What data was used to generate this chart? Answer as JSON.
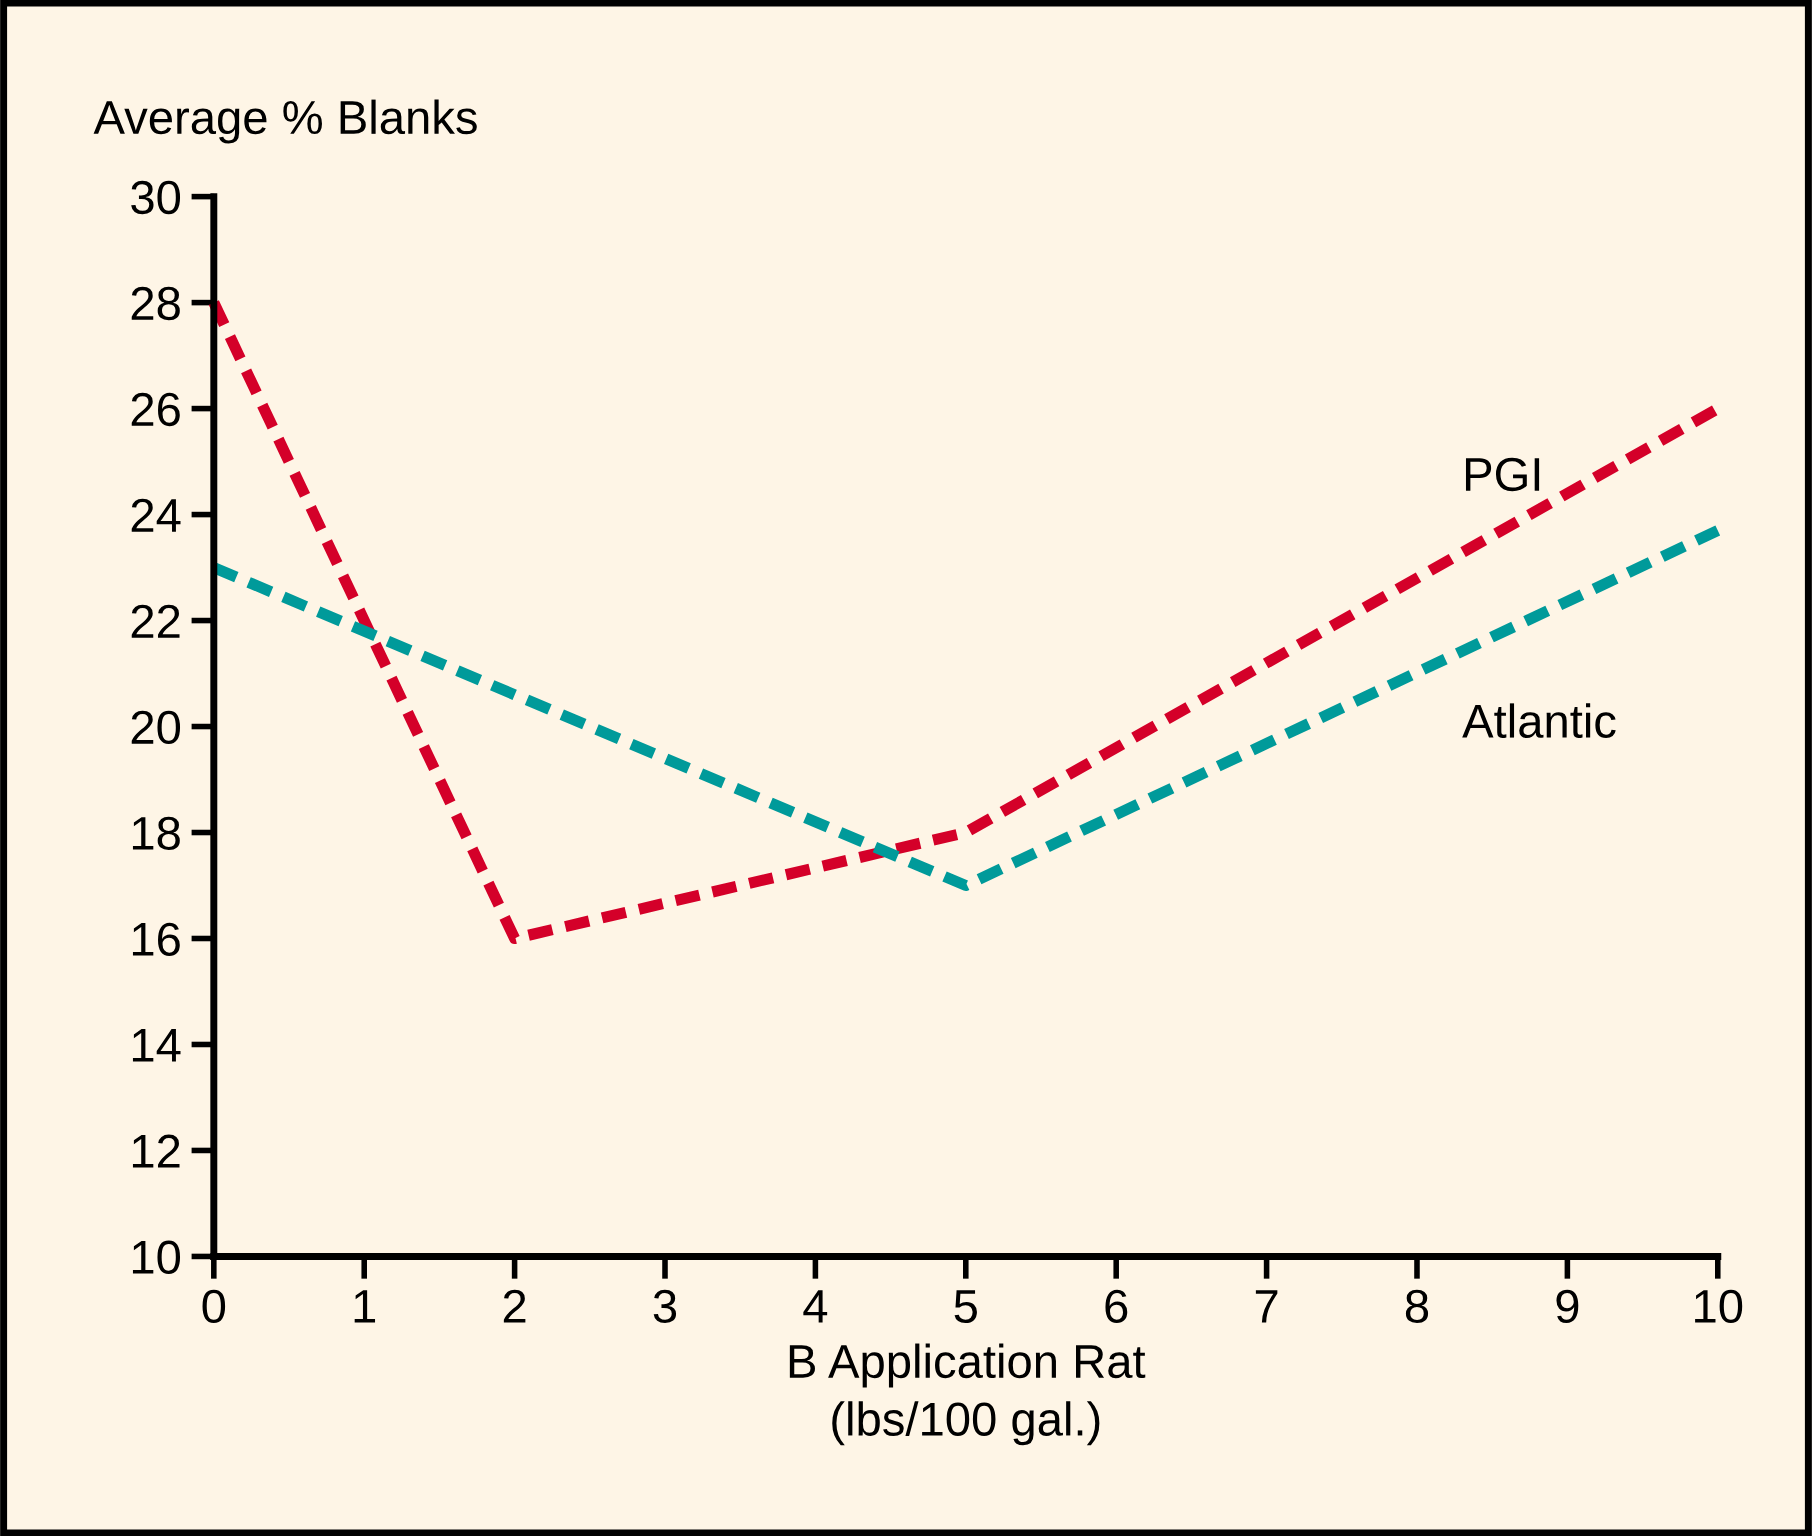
{
  "chart_data": {
    "type": "line",
    "ylabel": "Average % Blanks",
    "xlabel": "B Application Rat\n(lbs/100 gal.)",
    "series": [
      {
        "name": "PGI",
        "color": "#d40029",
        "x": [
          0,
          2,
          5,
          10
        ],
        "values": [
          28,
          16,
          18,
          26
        ]
      },
      {
        "name": "Atlantic",
        "color": "#009a9a",
        "x": [
          0,
          5,
          10
        ],
        "values": [
          23,
          17,
          23.7
        ]
      }
    ],
    "xlim": [
      0,
      10
    ],
    "xticks": [
      0,
      1,
      2,
      3,
      4,
      5,
      6,
      7,
      8,
      9,
      10
    ],
    "ylim": [
      10,
      30
    ],
    "yticks": [
      10,
      12,
      14,
      16,
      18,
      20,
      22,
      24,
      26,
      28,
      30
    ],
    "grid": false,
    "legend": false,
    "line_style": "dashed",
    "marker": "none"
  }
}
